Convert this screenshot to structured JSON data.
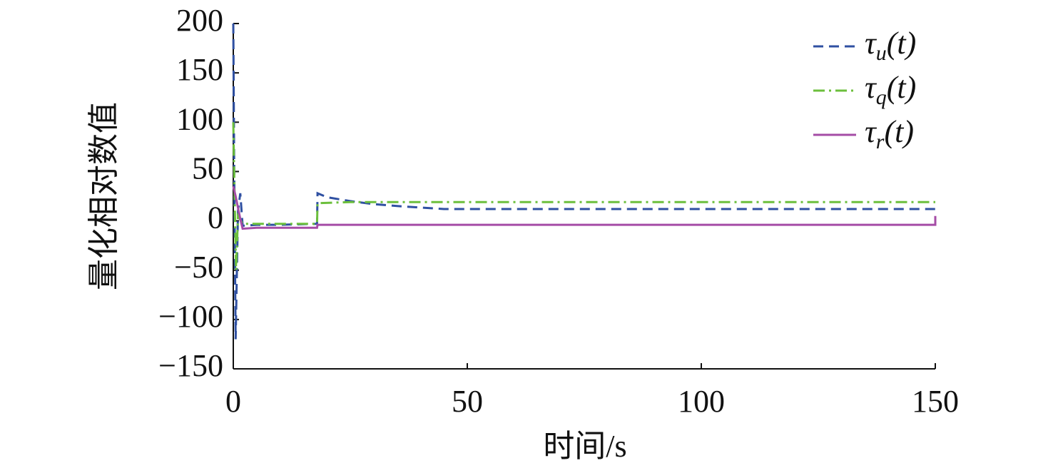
{
  "chart_data": {
    "type": "line",
    "xlabel": "时间/s",
    "ylabel": "量化相对数值",
    "xlim": [
      0,
      150
    ],
    "ylim": [
      -150,
      200
    ],
    "xticks": [
      0,
      50,
      100,
      150
    ],
    "yticks": [
      {
        "value": -150,
        "label": "−150"
      },
      {
        "value": -100,
        "label": "−100"
      },
      {
        "value": -50,
        "label": "−50"
      },
      0,
      50,
      100,
      150,
      200
    ],
    "legend": "upper right",
    "series": [
      {
        "name": "τu(t)",
        "color": "#2f50a2",
        "dash": "14,8",
        "x": [
          0,
          0.2,
          0.5,
          1,
          1.5,
          2,
          5,
          10,
          17.9,
          18,
          20,
          25,
          30,
          35,
          40,
          45,
          60,
          100,
          150
        ],
        "values": [
          200,
          50,
          -120,
          10,
          28,
          -5,
          -4,
          -4,
          -3,
          28,
          24,
          20,
          17,
          15,
          13.5,
          12,
          12,
          12,
          12
        ]
      },
      {
        "name": "τq(t)",
        "color": "#6cbf3c",
        "dash": "16,6,3,6",
        "x": [
          0,
          0.3,
          0.6,
          1,
          2,
          5,
          10,
          17.9,
          18,
          25,
          50,
          100,
          150
        ],
        "values": [
          100,
          20,
          -50,
          5,
          -3,
          -3,
          -3,
          -3,
          18,
          19,
          19,
          19,
          19
        ]
      },
      {
        "name": "τr(t)",
        "color": "#a54ca6",
        "dash": "none",
        "x": [
          0,
          0.5,
          1.5,
          2,
          5,
          10,
          17.9,
          18,
          50,
          100,
          150,
          150
        ],
        "values": [
          35,
          25,
          2,
          -8,
          -7,
          -7,
          -7,
          -4,
          -4,
          -4,
          -4,
          5
        ]
      }
    ]
  }
}
